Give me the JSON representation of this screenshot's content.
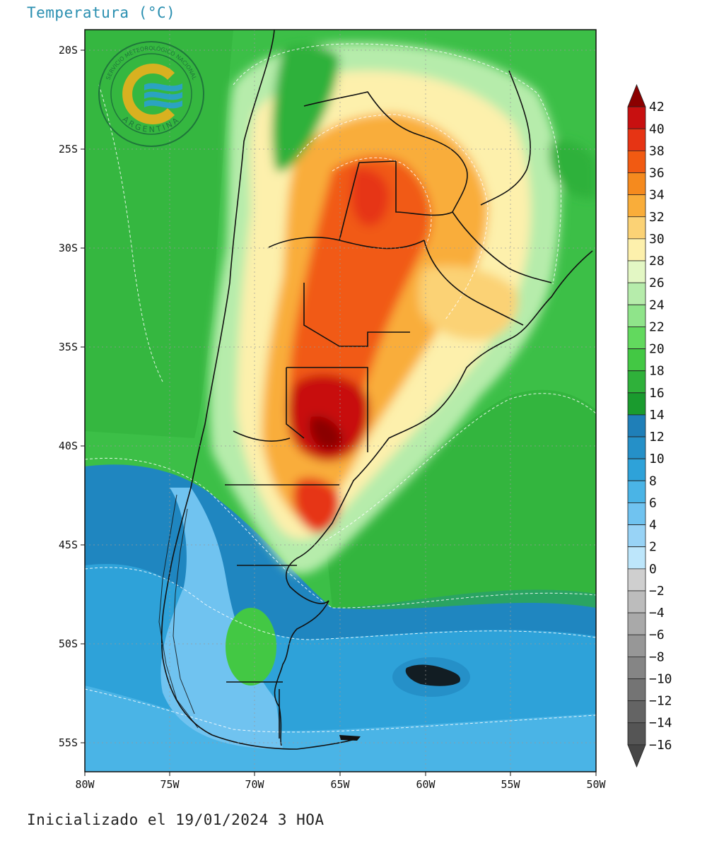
{
  "title": "Temperatura (°C)",
  "footer": "Inicializado el 19/01/2024 3 HOA",
  "logo": {
    "org_text": "SERVICIO METEOROLÓGICO NACIONAL",
    "country_text": "ARGENTINA",
    "colors": [
      "#f5b11b",
      "#2aa0d8"
    ]
  },
  "axes": {
    "lat_labels": [
      "20S",
      "25S",
      "30S",
      "35S",
      "40S",
      "45S",
      "50S",
      "55S"
    ],
    "lon_labels": [
      "80W",
      "75W",
      "70W",
      "65W",
      "60W",
      "55W",
      "50W"
    ],
    "lat_range": [
      -56,
      -19
    ],
    "lon_range": [
      -80,
      -50
    ],
    "grid": true
  },
  "colorbar": {
    "labels": [
      "42",
      "40",
      "38",
      "36",
      "34",
      "32",
      "30",
      "28",
      "26",
      "24",
      "22",
      "20",
      "18",
      "16",
      "14",
      "12",
      "10",
      "8",
      "6",
      "4",
      "2",
      "0",
      "−2",
      "−4",
      "−6",
      "−8",
      "−10",
      "−12",
      "−14",
      "−16"
    ],
    "colors": [
      "#8b0000",
      "#c81010",
      "#e63414",
      "#f15a12",
      "#f58a1e",
      "#f9ad3a",
      "#fbd275",
      "#fdf0ac",
      "#e3f7c4",
      "#b6ecab",
      "#8fe48a",
      "#62d95e",
      "#43c844",
      "#2fb13a",
      "#1a9b2e",
      "#1f7fb8",
      "#2590c8",
      "#2ea2d9",
      "#4ab4e6",
      "#70c3f0",
      "#98d3f6",
      "#bde6fb",
      "#cfcfcf",
      "#bcbcbc",
      "#a9a9a9",
      "#979797",
      "#858585",
      "#747474",
      "#646464",
      "#555555",
      "#464646"
    ]
  }
}
